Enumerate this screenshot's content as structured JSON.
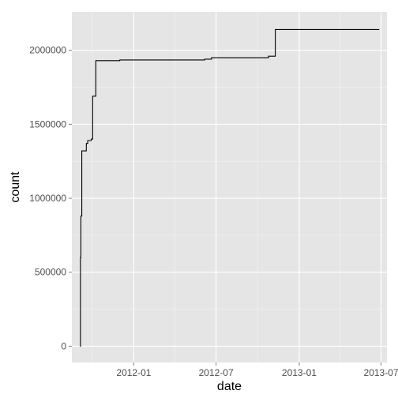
{
  "chart_data": {
    "type": "line",
    "title": "",
    "xlabel": "date",
    "ylabel": "count",
    "x_ticks": [
      "2012-01",
      "2012-07",
      "2013-01",
      "2013-07"
    ],
    "y_ticks": [
      "0",
      "500000",
      "1000000",
      "1500000",
      "2000000"
    ],
    "xlim": [
      "2011-08-17",
      "2013-07-14"
    ],
    "ylim": [
      -110000,
      2260000
    ],
    "grid": true,
    "legend": "none",
    "colors": {
      "panel": "#e5e5e5",
      "grid_major": "#ffffff",
      "grid_minor": "#f2f2f2",
      "line": "#000000"
    },
    "step": "hv",
    "series": [
      {
        "x": [
          "2011-09-04",
          "2011-09-05",
          "2011-09-06",
          "2011-09-08",
          "2011-09-18",
          "2011-09-21",
          "2011-09-29",
          "2011-10-02",
          "2011-10-09",
          "2011-12-01",
          "2012-06-06",
          "2012-06-21",
          "2012-10-25",
          "2012-11-09",
          "2013-06-27"
        ],
        "values": [
          0,
          600000,
          880000,
          1320000,
          1370000,
          1390000,
          1400000,
          1690000,
          1930000,
          1935000,
          1940000,
          1950000,
          1960000,
          2140000,
          2140000
        ]
      }
    ]
  }
}
